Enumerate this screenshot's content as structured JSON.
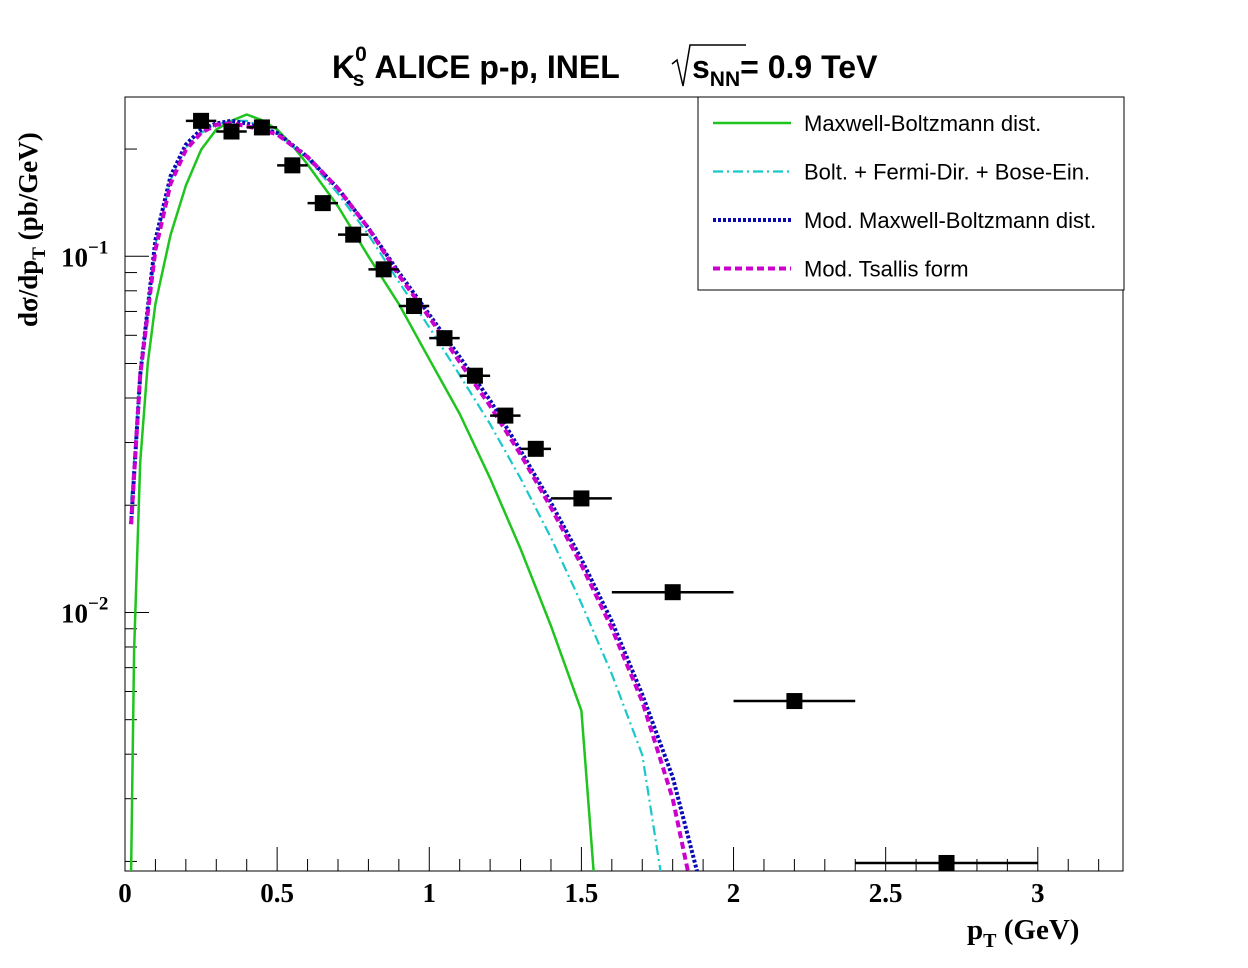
{
  "chart_data": {
    "type": "scatter",
    "title": {
      "particle": "K",
      "particle_sup": "0",
      "particle_sub": "s",
      "main": "ALICE p-p, INEL",
      "energy_var": "s",
      "energy_sub": "NN",
      "energy_value": "= 0.9 TeV"
    },
    "xlabel": {
      "var": "p",
      "sub": "T",
      "unit": " (GeV)"
    },
    "ylabel": {
      "pre": "dσ/dp",
      "sub": "T",
      "unit": " (pb/GeV)"
    },
    "x_range": [
      0,
      3.28
    ],
    "y_range": [
      0.00188,
      0.28
    ],
    "y_scale": "log",
    "x_tick_labels": [
      "0",
      "0.5",
      "1",
      "1.5",
      "2",
      "2.5",
      "3"
    ],
    "y_tick_labels": [
      {
        "value": 0.1,
        "base": "10",
        "exp": "−1"
      },
      {
        "value": 0.01,
        "base": "10",
        "exp": "−2"
      }
    ],
    "grid": false,
    "legend_position": "top-right",
    "data_points": [
      {
        "x": 0.25,
        "xerr": 0.05,
        "y": 0.24
      },
      {
        "x": 0.35,
        "xerr": 0.05,
        "y": 0.224
      },
      {
        "x": 0.45,
        "xerr": 0.05,
        "y": 0.23
      },
      {
        "x": 0.55,
        "xerr": 0.05,
        "y": 0.18
      },
      {
        "x": 0.65,
        "xerr": 0.05,
        "y": 0.141
      },
      {
        "x": 0.75,
        "xerr": 0.05,
        "y": 0.115
      },
      {
        "x": 0.85,
        "xerr": 0.05,
        "y": 0.0919
      },
      {
        "x": 0.95,
        "xerr": 0.05,
        "y": 0.0725
      },
      {
        "x": 1.05,
        "xerr": 0.05,
        "y": 0.0589
      },
      {
        "x": 1.15,
        "xerr": 0.05,
        "y": 0.0462
      },
      {
        "x": 1.25,
        "xerr": 0.05,
        "y": 0.0357
      },
      {
        "x": 1.35,
        "xerr": 0.05,
        "y": 0.0288
      },
      {
        "x": 1.5,
        "xerr": 0.1,
        "y": 0.0209
      },
      {
        "x": 1.8,
        "xerr": 0.2,
        "y": 0.0114
      },
      {
        "x": 2.2,
        "xerr": 0.2,
        "y": 0.00564
      },
      {
        "x": 2.7,
        "xerr": 0.3,
        "y": 0.00198
      }
    ],
    "series": [
      {
        "name": "Maxwell-Boltzmann dist.",
        "color": "#1fc41f",
        "dash": "solid",
        "points": [
          [
            0.02,
            0.00188
          ],
          [
            0.03,
            0.0078
          ],
          [
            0.05,
            0.0264
          ],
          [
            0.075,
            0.0502
          ],
          [
            0.1,
            0.0735
          ],
          [
            0.15,
            0.115
          ],
          [
            0.2,
            0.158
          ],
          [
            0.25,
            0.199
          ],
          [
            0.3,
            0.227
          ],
          [
            0.35,
            0.24
          ],
          [
            0.4,
            0.25
          ],
          [
            0.45,
            0.241
          ],
          [
            0.5,
            0.227
          ],
          [
            0.55,
            0.205
          ],
          [
            0.6,
            0.181
          ],
          [
            0.7,
            0.138
          ],
          [
            0.8,
            0.1
          ],
          [
            0.9,
            0.0735
          ],
          [
            1.0,
            0.0514
          ],
          [
            1.1,
            0.0361
          ],
          [
            1.2,
            0.0238
          ],
          [
            1.3,
            0.0151
          ],
          [
            1.4,
            0.00916
          ],
          [
            1.5,
            0.0053
          ],
          [
            1.54,
            0.00188
          ]
        ]
      },
      {
        "name": "Bolt. + Fermi-Dir. + Bose-Ein.",
        "color": "#19c8c8",
        "dash": "dashdot",
        "points": [
          [
            0.02,
            0.0206
          ],
          [
            0.05,
            0.0464
          ],
          [
            0.1,
            0.108
          ],
          [
            0.15,
            0.164
          ],
          [
            0.2,
            0.202
          ],
          [
            0.25,
            0.222
          ],
          [
            0.3,
            0.234
          ],
          [
            0.35,
            0.24
          ],
          [
            0.4,
            0.24
          ],
          [
            0.5,
            0.222
          ],
          [
            0.6,
            0.188
          ],
          [
            0.7,
            0.15
          ],
          [
            0.8,
            0.115
          ],
          [
            0.9,
            0.0848
          ],
          [
            1.0,
            0.0632
          ],
          [
            1.1,
            0.0464
          ],
          [
            1.2,
            0.0338
          ],
          [
            1.3,
            0.0238
          ],
          [
            1.4,
            0.0162
          ],
          [
            1.5,
            0.0106
          ],
          [
            1.6,
            0.00672
          ],
          [
            1.7,
            0.00398
          ],
          [
            1.76,
            0.00188
          ]
        ]
      },
      {
        "name": "Mod. Maxwell-Boltzmann dist.",
        "color": "#0a0ab4",
        "dash": "dotted-thick",
        "points": [
          [
            0.02,
            0.0177
          ],
          [
            0.05,
            0.0464
          ],
          [
            0.1,
            0.111
          ],
          [
            0.15,
            0.168
          ],
          [
            0.2,
            0.206
          ],
          [
            0.25,
            0.227
          ],
          [
            0.3,
            0.236
          ],
          [
            0.35,
            0.24
          ],
          [
            0.4,
            0.236
          ],
          [
            0.5,
            0.222
          ],
          [
            0.6,
            0.19
          ],
          [
            0.7,
            0.155
          ],
          [
            0.8,
            0.12
          ],
          [
            0.9,
            0.0901
          ],
          [
            1.0,
            0.0686
          ],
          [
            1.1,
            0.0521
          ],
          [
            1.2,
            0.0394
          ],
          [
            1.3,
            0.0285
          ],
          [
            1.4,
            0.0203
          ],
          [
            1.5,
            0.0141
          ],
          [
            1.6,
            0.00945
          ],
          [
            1.7,
            0.00588
          ],
          [
            1.8,
            0.00345
          ],
          [
            1.88,
            0.00188
          ]
        ]
      },
      {
        "name": "Mod. Tsallis form",
        "color": "#cc00cc",
        "dash": "dashed",
        "points": [
          [
            0.02,
            0.0177
          ],
          [
            0.05,
            0.0464
          ],
          [
            0.1,
            0.104
          ],
          [
            0.15,
            0.16
          ],
          [
            0.2,
            0.199
          ],
          [
            0.25,
            0.222
          ],
          [
            0.3,
            0.234
          ],
          [
            0.35,
            0.236
          ],
          [
            0.4,
            0.232
          ],
          [
            0.5,
            0.22
          ],
          [
            0.6,
            0.19
          ],
          [
            0.7,
            0.155
          ],
          [
            0.8,
            0.12
          ],
          [
            0.9,
            0.0885
          ],
          [
            1.0,
            0.0674
          ],
          [
            1.1,
            0.0505
          ],
          [
            1.2,
            0.038
          ],
          [
            1.3,
            0.0278
          ],
          [
            1.4,
            0.0197
          ],
          [
            1.5,
            0.0136
          ],
          [
            1.6,
            0.00903
          ],
          [
            1.7,
            0.00562
          ],
          [
            1.8,
            0.003
          ],
          [
            1.85,
            0.00188
          ]
        ]
      }
    ]
  }
}
